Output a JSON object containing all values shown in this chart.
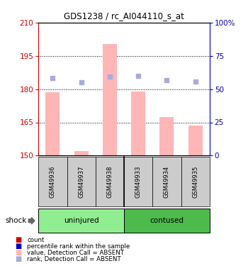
{
  "title": "GDS1238 / rc_AI044110_s_at",
  "samples": [
    "GSM49936",
    "GSM49937",
    "GSM49938",
    "GSM49933",
    "GSM49934",
    "GSM49935"
  ],
  "group_labels": [
    "uninjured",
    "contused"
  ],
  "group_colors": [
    "#90EE90",
    "#4CBB4C"
  ],
  "factor_label": "shock",
  "bar_values": [
    178.5,
    152.0,
    200.5,
    179.0,
    167.5,
    163.5
  ],
  "rank_pct_values": [
    58.3,
    55.0,
    59.2,
    60.0,
    56.7,
    55.8
  ],
  "ylim_left": [
    150,
    210
  ],
  "ylim_right": [
    0,
    100
  ],
  "yticks_left": [
    150,
    165,
    180,
    195,
    210
  ],
  "yticks_right": [
    0,
    25,
    50,
    75,
    100
  ],
  "ytick_labels_right": [
    "0",
    "25",
    "50",
    "75",
    "100%"
  ],
  "bar_color": "#FFB6B6",
  "rank_color": "#AAAADD",
  "left_axis_color": "#CC0000",
  "right_axis_color": "#0000BB",
  "grid_lines": [
    195,
    180,
    165
  ],
  "bar_width": 0.5,
  "legend_items": [
    {
      "label": "count",
      "color": "#CC0000"
    },
    {
      "label": "percentile rank within the sample",
      "color": "#0000BB"
    },
    {
      "label": "value, Detection Call = ABSENT",
      "color": "#FFB6B6"
    },
    {
      "label": "rank, Detection Call = ABSENT",
      "color": "#AAAADD"
    }
  ]
}
